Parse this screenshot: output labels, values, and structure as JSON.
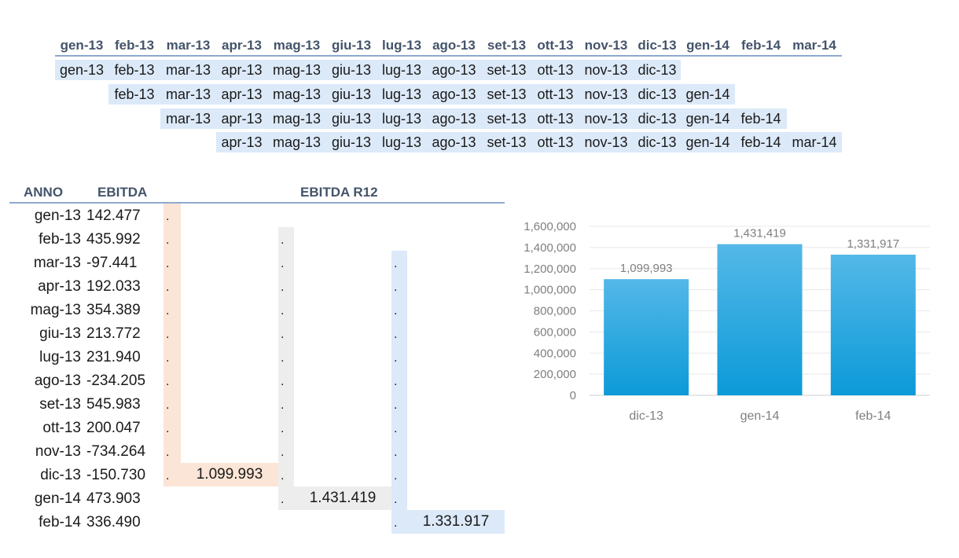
{
  "top_strip": {
    "header_months": [
      "gen-13",
      "feb-13",
      "mar-13",
      "apr-13",
      "mag-13",
      "giu-13",
      "lug-13",
      "ago-13",
      "set-13",
      "ott-13",
      "nov-13",
      "dic-13",
      "gen-14",
      "feb-14",
      "mar-14"
    ],
    "rolling_rows": [
      [
        "gen-13",
        "feb-13",
        "mar-13",
        "apr-13",
        "mag-13",
        "giu-13",
        "lug-13",
        "ago-13",
        "set-13",
        "ott-13",
        "nov-13",
        "dic-13"
      ],
      [
        "feb-13",
        "mar-13",
        "apr-13",
        "mag-13",
        "giu-13",
        "lug-13",
        "ago-13",
        "set-13",
        "ott-13",
        "nov-13",
        "dic-13",
        "gen-14"
      ],
      [
        "mar-13",
        "apr-13",
        "mag-13",
        "giu-13",
        "lug-13",
        "ago-13",
        "set-13",
        "ott-13",
        "nov-13",
        "dic-13",
        "gen-14",
        "feb-14"
      ],
      [
        "apr-13",
        "mag-13",
        "giu-13",
        "lug-13",
        "ago-13",
        "set-13",
        "ott-13",
        "nov-13",
        "dic-13",
        "gen-14",
        "feb-14",
        "mar-14"
      ]
    ]
  },
  "table": {
    "headers": {
      "anno": "ANNO",
      "ebitda": "EBITDA",
      "r12": "EBITDA R12"
    },
    "rows": [
      {
        "month": "gen-13",
        "ebitda": "142.477"
      },
      {
        "month": "feb-13",
        "ebitda": "435.992"
      },
      {
        "month": "mar-13",
        "ebitda": "-97.441"
      },
      {
        "month": "apr-13",
        "ebitda": "192.033"
      },
      {
        "month": "mag-13",
        "ebitda": "354.389"
      },
      {
        "month": "giu-13",
        "ebitda": "213.772"
      },
      {
        "month": "lug-13",
        "ebitda": "231.940"
      },
      {
        "month": "ago-13",
        "ebitda": "-234.205"
      },
      {
        "month": "set-13",
        "ebitda": "545.983"
      },
      {
        "month": "ott-13",
        "ebitda": "200.047"
      },
      {
        "month": "nov-13",
        "ebitda": "-734.264"
      },
      {
        "month": "dic-13",
        "ebitda": "-150.730"
      },
      {
        "month": "gen-14",
        "ebitda": "473.903"
      },
      {
        "month": "feb-14",
        "ebitda": "336.490"
      }
    ],
    "dot": ".",
    "r12_values": [
      "1.099.993",
      "1.431.419",
      "1.331.917"
    ],
    "band_colors": [
      "#fbe5d6",
      "#ededed",
      "#dce9f8"
    ]
  },
  "chart_data": {
    "type": "bar",
    "categories": [
      "dic-13",
      "gen-14",
      "feb-14"
    ],
    "values": [
      1099993,
      1431419,
      1331917
    ],
    "data_labels": [
      "1,099,993",
      "1,431,419",
      "1,331,917"
    ],
    "ylim": [
      0,
      1600000
    ],
    "y_ticks": [
      "0",
      "200,000",
      "400,000",
      "600,000",
      "800,000",
      "1,000,000",
      "1,200,000",
      "1,400,000",
      "1,600,000"
    ],
    "grid": true,
    "bar_color_top": "#54b8e8",
    "bar_color_bottom": "#0c9ad8",
    "title": "",
    "xlabel": "",
    "ylabel": ""
  }
}
